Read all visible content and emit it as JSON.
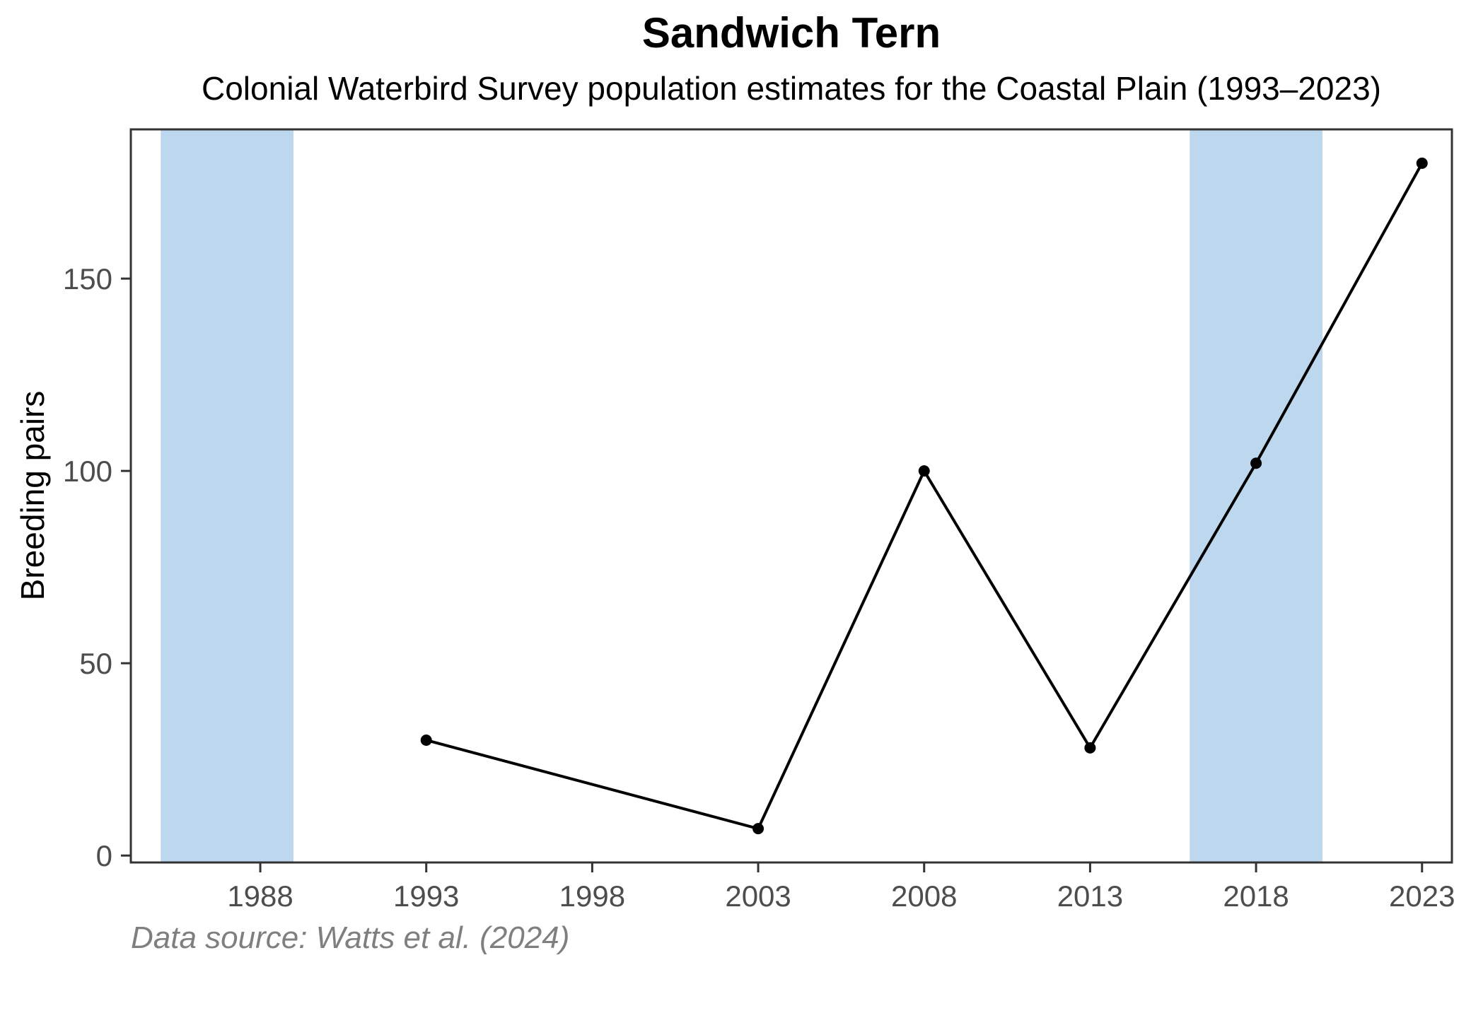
{
  "chart_data": {
    "type": "line",
    "title": "Sandwich Tern",
    "subtitle": "Colonial Waterbird Survey population estimates for the Coastal Plain (1993–2023)",
    "ylabel": "Breeding pairs",
    "xlabel": "",
    "caption": "Data source: Watts et al. (2024)",
    "series": [
      {
        "name": "Breeding pairs",
        "x": [
          1993,
          2003,
          2008,
          2013,
          2018,
          2023
        ],
        "y": [
          30,
          7,
          100,
          28,
          102,
          180
        ]
      }
    ],
    "x_ticks": [
      1988,
      1993,
      1998,
      2003,
      2008,
      2013,
      2018,
      2023
    ],
    "y_ticks": [
      0,
      50,
      100,
      150
    ],
    "xlim": [
      1984.1,
      2023.9
    ],
    "ylim": [
      -1.8,
      188.8
    ],
    "shaded_bands": [
      {
        "x_start": 1985,
        "x_end": 1989
      },
      {
        "x_start": 2016,
        "x_end": 2020
      }
    ],
    "band_color": "#BDD7EE",
    "line_color": "#000000",
    "point_color": "#000000",
    "axis_text_color": "#4D4D4D",
    "border_color": "#333333",
    "grid": false,
    "legend": false
  }
}
